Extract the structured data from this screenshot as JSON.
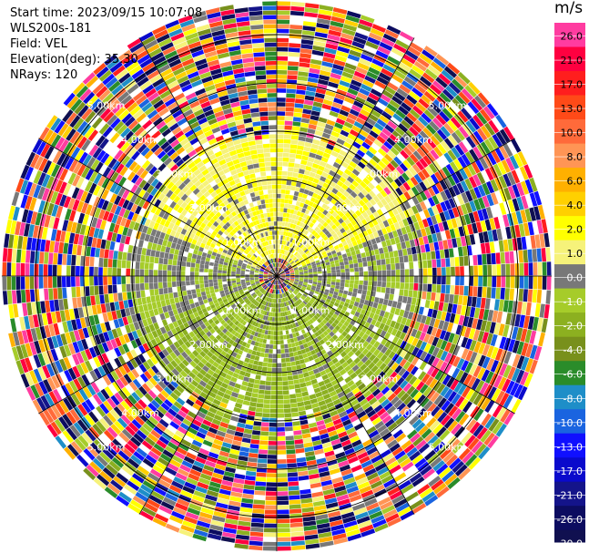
{
  "header": {
    "start_time": "Start time: 2023/09/15 10:07:08",
    "instrument": "WLS200s-181",
    "field": "Field: VEL",
    "elevation": "Elevation(deg): 35.30",
    "nrays": "NRays: 120"
  },
  "chart_data": {
    "type": "heatmap",
    "projection": "polar PPI",
    "n_rays": 120,
    "range_unit": "km",
    "range_max_km": 5.7,
    "range_rings_km": [
      1,
      2,
      3,
      4,
      5
    ],
    "range_ring_labels": [
      "1.00km",
      "2.00km",
      "3.00km",
      "4.00km",
      "5.00km"
    ],
    "spoke_angles_deg": [
      0,
      30,
      60,
      90,
      120,
      150,
      180,
      210,
      240,
      270,
      300,
      330
    ],
    "colorbar": {
      "unit": "m/s",
      "tick_labels": [
        "26.0",
        "21.0",
        "17.0",
        "13.0",
        "10.0",
        "8.0",
        "6.0",
        "4.0",
        "2.0",
        "1.0",
        "0.0",
        "-1.0",
        "-2.0",
        "-4.0",
        "-6.0",
        "-8.0",
        "-10.0",
        "-13.0",
        "-17.0",
        "-21.0",
        "-26.0",
        "-30.0"
      ],
      "colors": [
        "#ff3ca0",
        "#ff0040",
        "#ff1e1e",
        "#ff4a18",
        "#ff6a3a",
        "#ff9555",
        "#ffb000",
        "#ffd000",
        "#ffff00",
        "#f6f27a",
        "#787878",
        "#a6cc2a",
        "#8cb020",
        "#78901c",
        "#2a8c2a",
        "#1e8ec8",
        "#1a64e0",
        "#1010ff",
        "#0a0acc",
        "#14148a",
        "#0c0c60",
        "#101050"
      ]
    },
    "regions": [
      {
        "description": "approaching/positive sector",
        "from_deg": -160,
        "to_deg": -20,
        "max_km": 3.05,
        "value": 2.0
      },
      {
        "description": "receding/negative sector",
        "from_deg": 20,
        "to_deg": 160,
        "max_km": 3.05,
        "value": -1.0
      },
      {
        "description": "near-zero transition",
        "from_deg": -20,
        "to_deg": 20,
        "max_km": 3.05,
        "value": 0.0
      }
    ]
  }
}
